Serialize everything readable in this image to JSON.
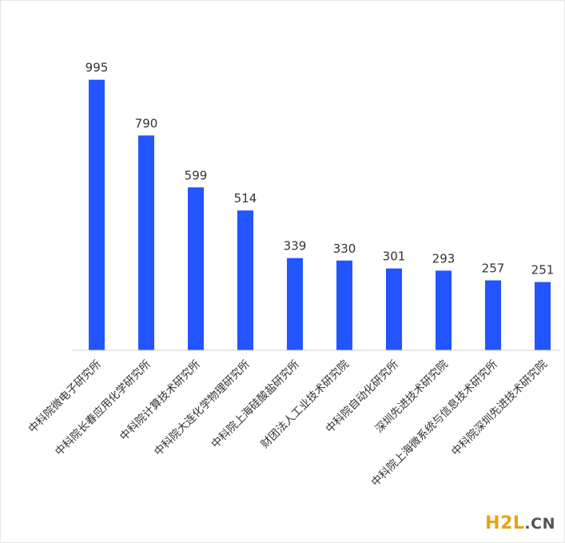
{
  "chart_data": {
    "type": "bar",
    "title": "",
    "xlabel": "",
    "ylabel": "",
    "categories": [
      "中科院微电子研究所",
      "中科院长春应用化学研究所",
      "中科院计算技术研究所",
      "中科院大连化学物理研究所",
      "中科院上海硅酸盐研究所",
      "财团法人工业技术研究院",
      "中科院自动化研究所",
      "深圳先进技术研究院",
      "中科院上海微系统与信息技术研究所",
      "中科院深圳先进技术研究院"
    ],
    "values": [
      995,
      790,
      599,
      514,
      339,
      330,
      301,
      293,
      257,
      251
    ],
    "ylim": [
      0,
      1000
    ],
    "grid": false,
    "bar_color": "#2255ff"
  },
  "watermark": {
    "part1": "H2L",
    "part2": ".CN",
    "color_main": "#e8a317"
  }
}
